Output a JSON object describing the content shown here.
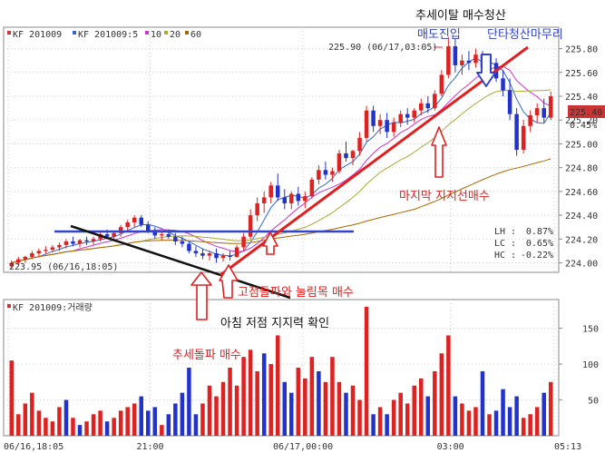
{
  "chart_data": {
    "type": "candlestick",
    "legend": {
      "symbol": "KF 201009",
      "ma_label": "KF 201009:5",
      "ma_periods": [
        "10",
        "20",
        "60"
      ],
      "ma_colors": [
        "#cc33cc",
        "#aaaa33",
        "#aa6600"
      ]
    },
    "volume_legend": "KF 201009:거래량",
    "y_ticks": [
      "225.80",
      "225.60",
      "225.40",
      "225.20",
      "225.00",
      "224.80",
      "224.60",
      "224.40",
      "224.20",
      "224.00"
    ],
    "y_range": [
      223.92,
      225.98
    ],
    "volume_ticks": [
      "150",
      "100",
      "50"
    ],
    "volume_range": [
      0,
      190
    ],
    "x_ticks": [
      "06/16,18:05",
      "21:00",
      "06/17,00:00",
      "03:00",
      "05:13"
    ],
    "current_price": "225.40",
    "current_change": "0.45%",
    "high_label": "225.90 (06/17,03:05)",
    "low_label": "223.95 (06/16,18:05)",
    "stats": [
      {
        "label": "LH :",
        "value": "0.87%"
      },
      {
        "label": "LC :",
        "value": "0.65%"
      },
      {
        "label": "HC :",
        "value": "-0.22%"
      }
    ],
    "annotations": {
      "trend_exit": "추세이탈 매수청산",
      "short_entry": "매도진입",
      "scalp_close": "단타청산마무리",
      "last_support": "마지막 지지선매수",
      "breakout_pullback": "고점돌파와 눌림목 매수",
      "morning_low": "아침 저점 지지력 확인",
      "trend_break": "추세돌파 매수"
    },
    "candles": [
      [
        223.97,
        224.02,
        223.95,
        224.0
      ],
      [
        224.0,
        224.05,
        223.98,
        224.03
      ],
      [
        224.03,
        224.06,
        224.0,
        224.05
      ],
      [
        224.05,
        224.1,
        224.03,
        224.08
      ],
      [
        224.08,
        224.12,
        224.05,
        224.1
      ],
      [
        224.1,
        224.14,
        224.08,
        224.11
      ],
      [
        224.11,
        224.15,
        224.09,
        224.13
      ],
      [
        224.13,
        224.17,
        224.1,
        224.15
      ],
      [
        224.15,
        224.2,
        224.12,
        224.18
      ],
      [
        224.18,
        224.22,
        224.14,
        224.16
      ],
      [
        224.16,
        224.2,
        224.13,
        224.19
      ],
      [
        224.19,
        224.22,
        224.15,
        224.18
      ],
      [
        224.18,
        224.22,
        224.15,
        224.2
      ],
      [
        224.2,
        224.26,
        224.18,
        224.24
      ],
      [
        224.24,
        224.28,
        224.2,
        224.22
      ],
      [
        224.22,
        224.26,
        224.18,
        224.25
      ],
      [
        224.25,
        224.32,
        224.22,
        224.3
      ],
      [
        224.3,
        224.36,
        224.26,
        224.34
      ],
      [
        224.34,
        224.4,
        224.3,
        224.38
      ],
      [
        224.38,
        224.4,
        224.3,
        224.32
      ],
      [
        224.32,
        224.35,
        224.25,
        224.27
      ],
      [
        224.27,
        224.3,
        224.2,
        224.23
      ],
      [
        224.23,
        224.27,
        224.19,
        224.24
      ],
      [
        224.24,
        224.28,
        224.2,
        224.22
      ],
      [
        224.22,
        224.25,
        224.15,
        224.18
      ],
      [
        224.18,
        224.22,
        224.13,
        224.16
      ],
      [
        224.16,
        224.18,
        224.08,
        224.1
      ],
      [
        224.1,
        224.14,
        224.05,
        224.08
      ],
      [
        224.08,
        224.12,
        224.03,
        224.06
      ],
      [
        224.06,
        224.1,
        224.02,
        224.08
      ],
      [
        224.08,
        224.12,
        224.0,
        224.04
      ],
      [
        224.04,
        224.08,
        224.01,
        224.06
      ],
      [
        224.06,
        224.1,
        224.02,
        224.05
      ],
      [
        224.05,
        224.15,
        224.04,
        224.13
      ],
      [
        224.13,
        224.25,
        224.1,
        224.22
      ],
      [
        224.22,
        224.45,
        224.2,
        224.4
      ],
      [
        224.4,
        224.55,
        224.35,
        224.5
      ],
      [
        224.5,
        224.6,
        224.42,
        224.55
      ],
      [
        224.55,
        224.68,
        224.5,
        224.65
      ],
      [
        224.65,
        224.75,
        224.52,
        224.55
      ],
      [
        224.55,
        224.62,
        224.45,
        224.5
      ],
      [
        224.5,
        224.6,
        224.45,
        224.58
      ],
      [
        224.58,
        224.64,
        224.48,
        224.52
      ],
      [
        224.52,
        224.6,
        224.46,
        224.56
      ],
      [
        224.56,
        224.72,
        224.54,
        224.7
      ],
      [
        224.7,
        224.82,
        224.66,
        224.78
      ],
      [
        224.78,
        224.85,
        224.7,
        224.74
      ],
      [
        224.74,
        224.8,
        224.68,
        224.77
      ],
      [
        224.77,
        224.95,
        224.75,
        224.92
      ],
      [
        224.92,
        225.02,
        224.85,
        224.88
      ],
      [
        224.88,
        224.95,
        224.82,
        224.94
      ],
      [
        224.94,
        225.1,
        224.9,
        225.05
      ],
      [
        225.05,
        225.32,
        225.02,
        225.28
      ],
      [
        225.28,
        225.32,
        225.1,
        225.15
      ],
      [
        225.15,
        225.25,
        225.08,
        225.2
      ],
      [
        225.2,
        225.26,
        225.05,
        225.1
      ],
      [
        225.1,
        225.22,
        225.06,
        225.18
      ],
      [
        225.18,
        225.28,
        225.14,
        225.25
      ],
      [
        225.25,
        225.3,
        225.16,
        225.22
      ],
      [
        225.22,
        225.3,
        225.18,
        225.28
      ],
      [
        225.28,
        225.38,
        225.24,
        225.34
      ],
      [
        225.34,
        225.4,
        225.26,
        225.3
      ],
      [
        225.3,
        225.45,
        225.28,
        225.42
      ],
      [
        225.42,
        225.62,
        225.4,
        225.58
      ],
      [
        225.58,
        225.9,
        225.55,
        225.82
      ],
      [
        225.82,
        225.88,
        225.6,
        225.66
      ],
      [
        225.66,
        225.75,
        225.58,
        225.7
      ],
      [
        225.7,
        225.78,
        225.62,
        225.68
      ],
      [
        225.68,
        225.8,
        225.64,
        225.75
      ],
      [
        225.75,
        225.78,
        225.6,
        225.64
      ],
      [
        225.64,
        225.72,
        225.58,
        225.68
      ],
      [
        225.68,
        225.72,
        225.52,
        225.55
      ],
      [
        225.55,
        225.62,
        225.4,
        225.45
      ],
      [
        225.45,
        225.55,
        225.2,
        225.25
      ],
      [
        225.25,
        225.3,
        224.9,
        224.95
      ],
      [
        224.95,
        225.2,
        224.92,
        225.15
      ],
      [
        225.15,
        225.28,
        225.1,
        225.24
      ],
      [
        225.24,
        225.34,
        225.18,
        225.3
      ],
      [
        225.3,
        225.38,
        225.18,
        225.22
      ],
      [
        225.22,
        225.44,
        225.2,
        225.4
      ]
    ],
    "volume": [
      [
        105,
        "up"
      ],
      [
        30,
        "up"
      ],
      [
        45,
        "up"
      ],
      [
        60,
        "up"
      ],
      [
        35,
        "up"
      ],
      [
        25,
        "up"
      ],
      [
        20,
        "up"
      ],
      [
        40,
        "up"
      ],
      [
        50,
        "down"
      ],
      [
        25,
        "up"
      ],
      [
        15,
        "down"
      ],
      [
        20,
        "up"
      ],
      [
        30,
        "up"
      ],
      [
        35,
        "up"
      ],
      [
        20,
        "down"
      ],
      [
        25,
        "up"
      ],
      [
        35,
        "up"
      ],
      [
        40,
        "up"
      ],
      [
        45,
        "up"
      ],
      [
        55,
        "down"
      ],
      [
        35,
        "down"
      ],
      [
        40,
        "down"
      ],
      [
        15,
        "up"
      ],
      [
        30,
        "down"
      ],
      [
        45,
        "down"
      ],
      [
        60,
        "down"
      ],
      [
        95,
        "down"
      ],
      [
        30,
        "down"
      ],
      [
        45,
        "up"
      ],
      [
        70,
        "up"
      ],
      [
        55,
        "up"
      ],
      [
        75,
        "up"
      ],
      [
        95,
        "up"
      ],
      [
        70,
        "up"
      ],
      [
        110,
        "up"
      ],
      [
        120,
        "up"
      ],
      [
        90,
        "up"
      ],
      [
        115,
        "down"
      ],
      [
        100,
        "up"
      ],
      [
        140,
        "up"
      ],
      [
        75,
        "down"
      ],
      [
        60,
        "down"
      ],
      [
        95,
        "up"
      ],
      [
        80,
        "up"
      ],
      [
        110,
        "up"
      ],
      [
        90,
        "down"
      ],
      [
        75,
        "up"
      ],
      [
        110,
        "up"
      ],
      [
        75,
        "up"
      ],
      [
        60,
        "down"
      ],
      [
        70,
        "up"
      ],
      [
        50,
        "up"
      ],
      [
        180,
        "up"
      ],
      [
        30,
        "down"
      ],
      [
        40,
        "up"
      ],
      [
        30,
        "down"
      ],
      [
        50,
        "up"
      ],
      [
        60,
        "up"
      ],
      [
        45,
        "up"
      ],
      [
        70,
        "up"
      ],
      [
        80,
        "up"
      ],
      [
        55,
        "down"
      ],
      [
        90,
        "up"
      ],
      [
        115,
        "up"
      ],
      [
        140,
        "up"
      ],
      [
        55,
        "down"
      ],
      [
        45,
        "up"
      ],
      [
        35,
        "up"
      ],
      [
        40,
        "up"
      ],
      [
        90,
        "down"
      ],
      [
        30,
        "up"
      ],
      [
        35,
        "down"
      ],
      [
        65,
        "down"
      ],
      [
        40,
        "down"
      ],
      [
        55,
        "down"
      ],
      [
        25,
        "up"
      ],
      [
        30,
        "up"
      ],
      [
        40,
        "up"
      ],
      [
        60,
        "down"
      ],
      [
        75,
        "up"
      ]
    ]
  }
}
